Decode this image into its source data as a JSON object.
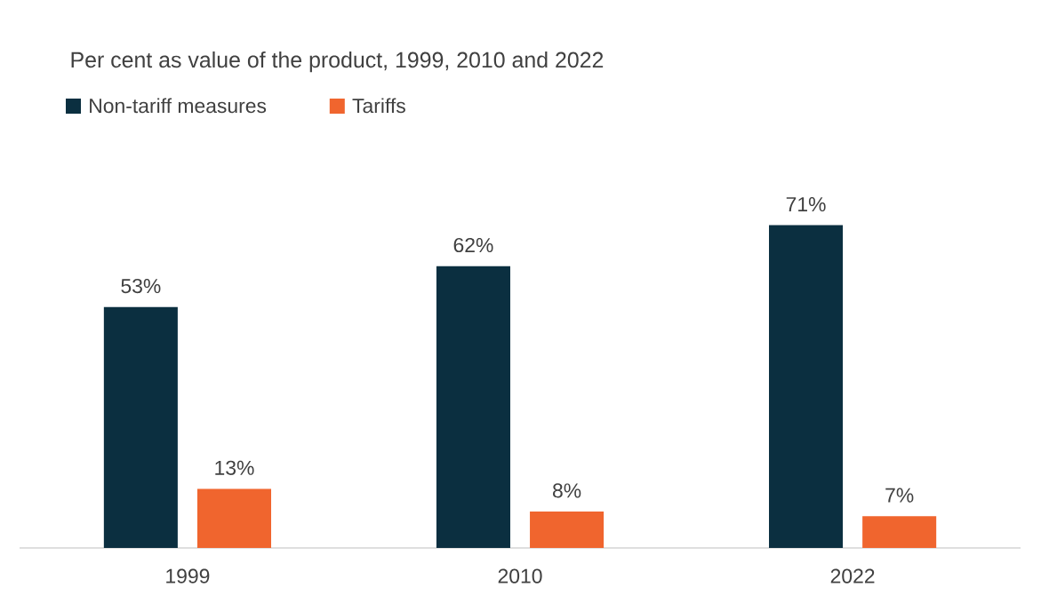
{
  "chart_data": {
    "type": "bar",
    "title": "Per cent as value of the product, 1999, 2010 and 2022",
    "categories": [
      "1999",
      "2010",
      "2022"
    ],
    "series": [
      {
        "name": "Non-tariff measures",
        "color": "#0b2f40",
        "values": [
          53,
          62,
          71
        ],
        "value_labels": [
          "53%",
          "62%",
          "71%"
        ]
      },
      {
        "name": "Tariffs",
        "color": "#f0652e",
        "values": [
          13,
          8,
          7
        ],
        "value_labels": [
          "13%",
          "8%",
          "7%"
        ]
      }
    ],
    "legend": "top left"
  }
}
